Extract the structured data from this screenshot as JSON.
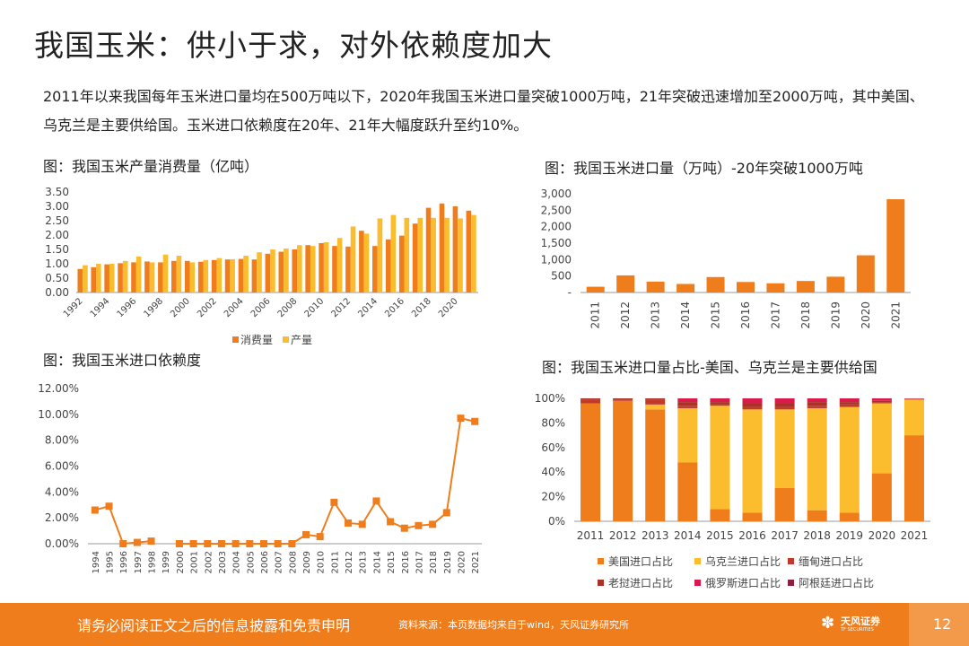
{
  "page_title": "我国玉米：供小于求，对外依赖度加大",
  "intro_text": "2011年以来我国每年玉米进口量均在500万吨以下，2020年我国玉米进口量突破1000万吨，21年突破迅速增加至2000万吨，其中美国、乌克兰是主要供给国。玉米进口依赖度在20年、21年大幅度跃升至约10%。",
  "footer": {
    "disclaimer": "请务必阅读正文之后的信息披露和免责申明",
    "source": "资料来源：本页数据均来自于wind，天风证券研究所",
    "logo_text": "天风证券",
    "logo_en": "TF SECURITIES",
    "page_number": "12"
  },
  "colors": {
    "orange": "#ef7d1c",
    "yellow": "#fbbd2e",
    "red": "#c0392b",
    "dark_red": "#a93226",
    "crimson": "#d81b4b",
    "maroon": "#8e1f3d"
  },
  "chart_data": [
    {
      "type": "bar",
      "title": "图：我国玉米产量消费量（亿吨）",
      "categories": [
        "1992",
        "1993",
        "1994",
        "1995",
        "1996",
        "1997",
        "1998",
        "1999",
        "2000",
        "2001",
        "2002",
        "2003",
        "2004",
        "2005",
        "2006",
        "2007",
        "2008",
        "2009",
        "2010",
        "2011",
        "2012",
        "2013",
        "2014",
        "2015",
        "2016",
        "2017",
        "2018",
        "2019",
        "2020",
        "2021"
      ],
      "tick_labels": [
        "1992",
        "1994",
        "1996",
        "1998",
        "2000",
        "2002",
        "2004",
        "2006",
        "2008",
        "2010",
        "2012",
        "2014",
        "2016",
        "2018",
        "2020"
      ],
      "yticks": [
        "0.00",
        "0.50",
        "1.00",
        "1.50",
        "2.00",
        "2.50",
        "3.00",
        "3.50"
      ],
      "ylim": [
        0,
        3.5
      ],
      "series": [
        {
          "name": "消费量",
          "color": "#ef7d1c",
          "values": [
            0.82,
            0.88,
            0.98,
            1.02,
            1.05,
            1.08,
            1.05,
            1.1,
            1.1,
            1.07,
            1.13,
            1.15,
            1.17,
            1.15,
            1.35,
            1.42,
            1.5,
            1.65,
            1.72,
            1.62,
            1.6,
            2.15,
            1.62,
            1.85,
            1.98,
            2.4,
            2.95,
            3.1,
            3.0,
            2.85
          ]
        },
        {
          "name": "产量",
          "color": "#fbbd2e",
          "values": [
            0.95,
            1.0,
            1.0,
            1.1,
            1.25,
            1.05,
            1.32,
            1.28,
            1.05,
            1.13,
            1.2,
            1.16,
            1.28,
            1.4,
            1.5,
            1.53,
            1.65,
            1.62,
            1.75,
            1.9,
            2.3,
            2.05,
            2.58,
            2.7,
            2.6,
            2.6,
            2.6,
            2.6,
            2.58,
            2.7
          ]
        }
      ],
      "legend_position": "bottom"
    },
    {
      "type": "bar",
      "title": "图：我国玉米进口量（万吨）-20年突破1000万吨",
      "categories": [
        "2011",
        "2012",
        "2013",
        "2014",
        "2015",
        "2016",
        "2017",
        "2018",
        "2019",
        "2020",
        "2021"
      ],
      "yticks": [
        "-",
        "500",
        "1,000",
        "1,500",
        "2,000",
        "2,500",
        "3,000"
      ],
      "ylim": [
        0,
        3000
      ],
      "series": [
        {
          "color": "#ef7d1c",
          "values": [
            175,
            520,
            330,
            260,
            470,
            320,
            280,
            350,
            480,
            1130,
            2835
          ]
        }
      ]
    },
    {
      "type": "line",
      "title": "图：我国玉米进口依赖度",
      "categories": [
        "1994",
        "1995",
        "1996",
        "1997",
        "1998",
        "1999",
        "2000",
        "2001",
        "2002",
        "2003",
        "2004",
        "2005",
        "2006",
        "2007",
        "2008",
        "2009",
        "2010",
        "2011",
        "2012",
        "2013",
        "2014",
        "2015",
        "2016",
        "2017",
        "2018",
        "2019",
        "2020",
        "2021"
      ],
      "yticks": [
        "0.00%",
        "2.00%",
        "4.00%",
        "6.00%",
        "8.00%",
        "10.00%",
        "12.00%"
      ],
      "ylim": [
        0,
        12
      ],
      "series": [
        {
          "color": "#ef7d1c",
          "values": [
            2.6,
            2.9,
            0.0,
            0.1,
            0.2,
            null,
            0.0,
            0.0,
            0.0,
            0.0,
            0.0,
            0.0,
            0.0,
            0.0,
            0.0,
            0.7,
            0.55,
            3.2,
            1.6,
            1.5,
            3.3,
            1.7,
            1.2,
            1.4,
            1.5,
            2.4,
            9.7,
            9.45
          ]
        }
      ]
    },
    {
      "type": "bar",
      "stacked": true,
      "title": "图：我国玉米进口量占比-美国、乌克兰是主要供给国",
      "categories": [
        "2011",
        "2012",
        "2013",
        "2014",
        "2015",
        "2016",
        "2017",
        "2018",
        "2019",
        "2020",
        "2021"
      ],
      "yticks": [
        "0%",
        "20%",
        "40%",
        "60%",
        "80%",
        "100%"
      ],
      "ylim": [
        0,
        100
      ],
      "series": [
        {
          "name": "美国进口占比",
          "color": "#ef7d1c",
          "values": [
            96,
            98,
            91,
            48,
            10,
            7,
            27,
            9,
            7,
            39,
            70
          ]
        },
        {
          "name": "乌克兰进口占比",
          "color": "#fbbd2e",
          "values": [
            0,
            0,
            4,
            44,
            84,
            84,
            64,
            83,
            86,
            57,
            29
          ]
        },
        {
          "name": "缅甸进口占比",
          "color": "#c0392b",
          "values": [
            3,
            1,
            4,
            2,
            1,
            2,
            2,
            2,
            2,
            1,
            0.5
          ]
        },
        {
          "name": "老挝进口占比",
          "color": "#a93226",
          "values": [
            1,
            1,
            1,
            3,
            2,
            3,
            3,
            3,
            2,
            1,
            0.3
          ]
        },
        {
          "name": "俄罗斯进口占比",
          "color": "#d81b4b",
          "values": [
            0,
            0,
            0,
            3,
            3,
            4,
            4,
            3,
            3,
            2,
            0.2
          ]
        },
        {
          "name": "阿根廷进口占比",
          "color": "#8e1f3d",
          "values": [
            0,
            0,
            0,
            0,
            0,
            0,
            0,
            0,
            0,
            0,
            0
          ]
        }
      ],
      "legend_position": "bottom"
    }
  ]
}
